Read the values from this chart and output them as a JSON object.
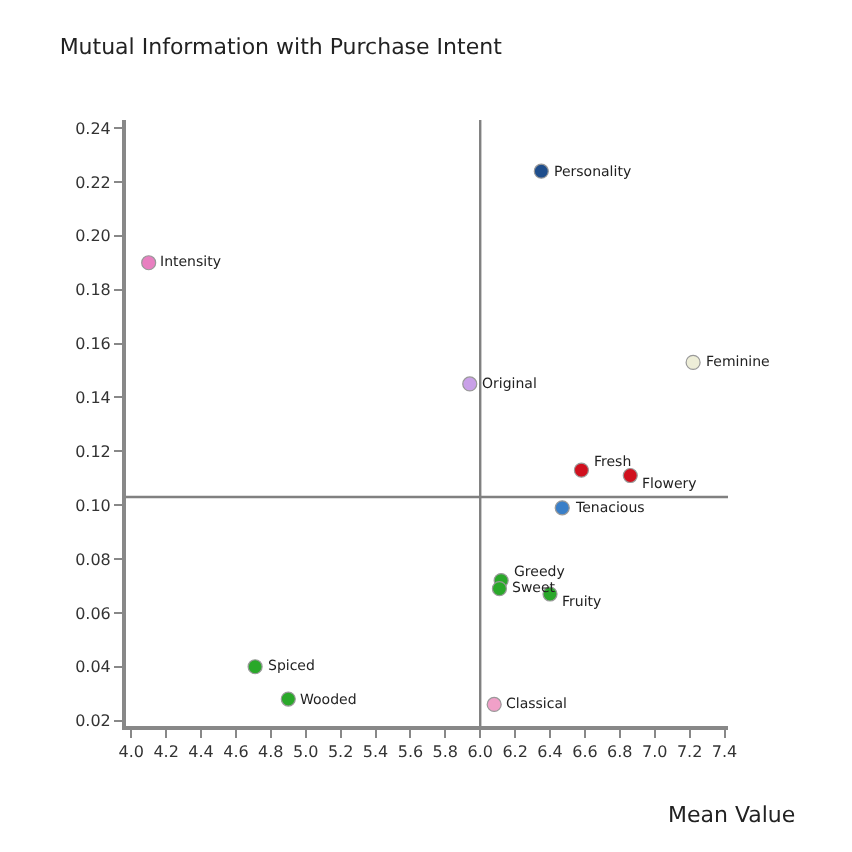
{
  "chart_data": {
    "type": "scatter",
    "title": "Mutual Information with Purchase Intent",
    "xlabel": "Mean Value",
    "xlim": [
      3.97,
      7.42
    ],
    "xticks": [
      {
        "value": 4.0,
        "label": "4.0"
      },
      4.2,
      4.4,
      4.6,
      4.8,
      {
        "value": 5.0,
        "label": "5.0"
      },
      5.2,
      5.4,
      5.6,
      5.8,
      {
        "value": 6.0,
        "label": "6.0"
      },
      6.2,
      6.4,
      6.6,
      6.8,
      {
        "value": 7.0,
        "label": "7.0"
      },
      7.2,
      7.4
    ],
    "ylim": [
      0.018,
      0.243
    ],
    "yticks": [
      {
        "value": 0.02,
        "label": "0.02"
      },
      {
        "value": 0.04,
        "label": "0.04"
      },
      {
        "value": 0.06,
        "label": "0.06"
      },
      {
        "value": 0.08,
        "label": "0.08"
      },
      {
        "value": 0.1,
        "label": "0.10"
      },
      {
        "value": 0.12,
        "label": "0.12"
      },
      {
        "value": 0.14,
        "label": "0.14"
      },
      {
        "value": 0.16,
        "label": "0.16"
      },
      {
        "value": 0.18,
        "label": "0.18"
      },
      {
        "value": 0.2,
        "label": "0.20"
      },
      {
        "value": 0.22,
        "label": "0.22"
      },
      {
        "value": 0.24,
        "label": "0.24"
      }
    ],
    "grid": false,
    "legend": false,
    "marker": "circle",
    "ref_lines": [
      {
        "axis": "x",
        "value": 6.0,
        "color": "#808080"
      },
      {
        "axis": "y",
        "value": 0.103,
        "color": "#808080"
      }
    ],
    "series": [
      {
        "name": "Personality",
        "color": "#1f4e8c",
        "x": [
          6.35
        ],
        "values": [
          0.224
        ]
      },
      {
        "name": "Intensity",
        "color": "#e87fc0",
        "x": [
          4.1
        ],
        "values": [
          0.19
        ]
      },
      {
        "name": "Feminine",
        "color": "#eeeed8",
        "x": [
          7.22
        ],
        "values": [
          0.153
        ]
      },
      {
        "name": "Original",
        "color": "#c9a0e8",
        "x": [
          5.94
        ],
        "values": [
          0.145
        ]
      },
      {
        "name": "Fresh",
        "color": "#d0101e",
        "x": [
          6.58
        ],
        "values": [
          0.113
        ]
      },
      {
        "name": "Flowery",
        "color": "#d0101e",
        "x": [
          6.86
        ],
        "values": [
          0.111
        ]
      },
      {
        "name": "Tenacious",
        "color": "#3a7fc8",
        "x": [
          6.47
        ],
        "values": [
          0.099
        ]
      },
      {
        "name": "Greedy",
        "color": "#2aa82a",
        "x": [
          6.12
        ],
        "values": [
          0.072
        ]
      },
      {
        "name": "Sweet",
        "color": "#2aa82a",
        "x": [
          6.11
        ],
        "values": [
          0.069
        ]
      },
      {
        "name": "Fruity",
        "color": "#2aa82a",
        "x": [
          6.4
        ],
        "values": [
          0.067
        ]
      },
      {
        "name": "Spiced",
        "color": "#2aa82a",
        "x": [
          4.71
        ],
        "values": [
          0.04
        ]
      },
      {
        "name": "Wooded",
        "color": "#2aa82a",
        "x": [
          4.9
        ],
        "values": [
          0.028
        ]
      },
      {
        "name": "Classical",
        "color": "#f0a0c8",
        "x": [
          6.08
        ],
        "values": [
          0.026
        ]
      }
    ]
  }
}
